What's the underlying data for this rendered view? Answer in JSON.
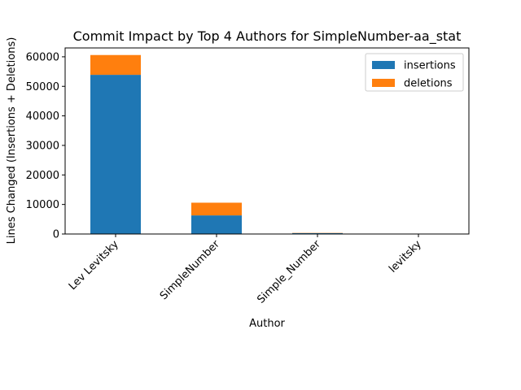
{
  "chart_data": {
    "type": "bar",
    "stacked": true,
    "title": "Commit Impact by Top 4 Authors for SimpleNumber-aa_stat",
    "xlabel": "Author",
    "ylabel": "Lines Changed (Insertions + Deletions)",
    "categories": [
      "Lev Levitsky",
      "SimpleNumber",
      "Simple_Number",
      "levitsky"
    ],
    "series": [
      {
        "name": "insertions",
        "color": "#1f77b4",
        "values": [
          53900,
          6300,
          300,
          20
        ]
      },
      {
        "name": "deletions",
        "color": "#ff7f0e",
        "values": [
          6700,
          4300,
          80,
          10
        ]
      }
    ],
    "ylim": [
      0,
      63000
    ],
    "yticks": [
      0,
      10000,
      20000,
      30000,
      40000,
      50000,
      60000
    ],
    "grid": false,
    "legend_position": "top-right"
  }
}
